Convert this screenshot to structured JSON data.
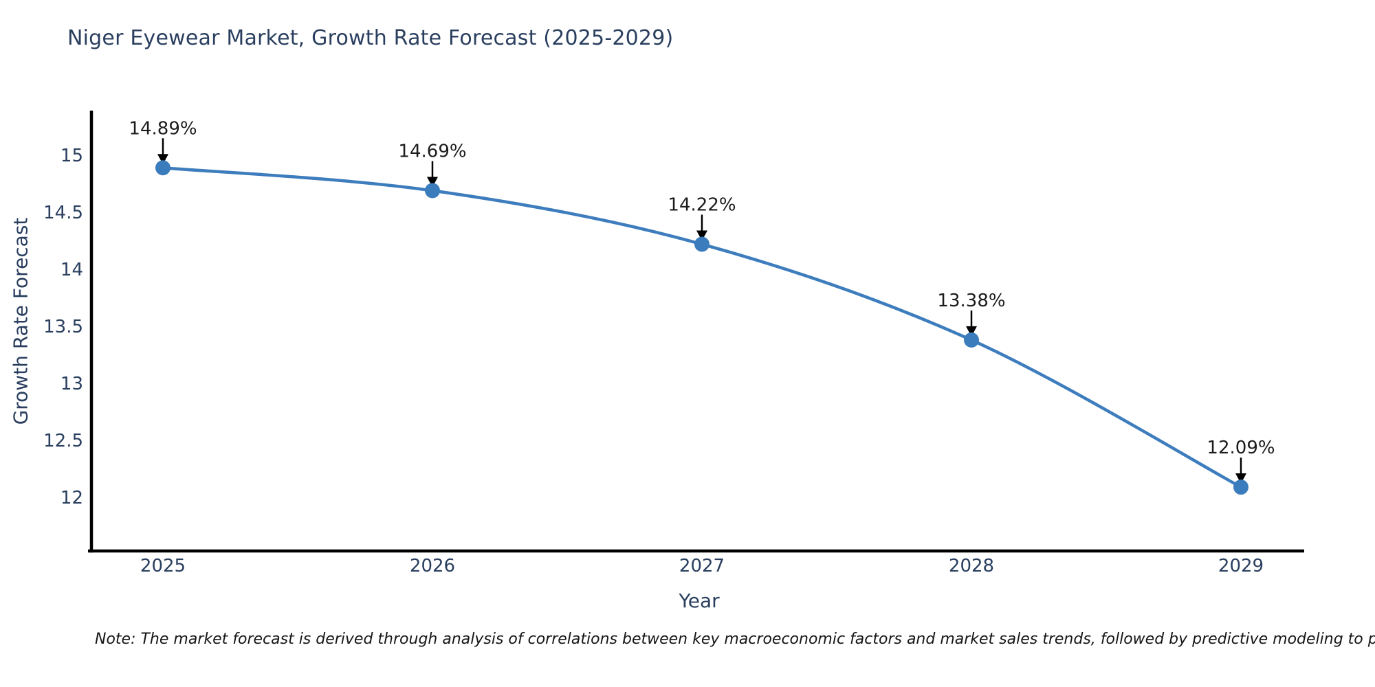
{
  "title": "Niger Eyewear Market, Growth Rate Forecast (2025-2029)",
  "note": "Note: The market forecast is derived through analysis of correlations between key macroeconomic factors and market sales trends, followed by predictive modeling to project future sal",
  "colors": {
    "line": "#3e7dbd",
    "marker": "#3b7cbd",
    "axis_line": "#000000",
    "axis_text": "#2a3f5f",
    "annotation_text": "#1c1c1c",
    "arrow": "#000000",
    "background": "#ffffff"
  },
  "chart_data": {
    "type": "line",
    "title": "Niger Eyewear Market, Growth Rate Forecast (2025-2029)",
    "xlabel": "Year",
    "ylabel": "Growth Rate Forecast",
    "x": [
      2025,
      2026,
      2027,
      2028,
      2029
    ],
    "series": [
      {
        "name": "Growth Rate Forecast",
        "values": [
          14.89,
          14.69,
          14.22,
          13.38,
          12.09
        ],
        "point_labels": [
          "14.89%",
          "14.69%",
          "14.22%",
          "13.38%",
          "12.09%"
        ]
      }
    ],
    "x_tick_labels": [
      "2025",
      "2026",
      "2027",
      "2028",
      "2029"
    ],
    "y_tick_labels": [
      "12",
      "12.5",
      "13",
      "13.5",
      "14",
      "14.5",
      "15"
    ],
    "y_ticks": [
      12,
      12.5,
      13,
      13.5,
      14,
      14.5,
      15
    ],
    "ylim": [
      11.55,
      15.39
    ],
    "grid": false,
    "legend": false,
    "line_style": "spline",
    "marker_style": "circle",
    "annotations": "value labels with downward arrows above each point"
  }
}
